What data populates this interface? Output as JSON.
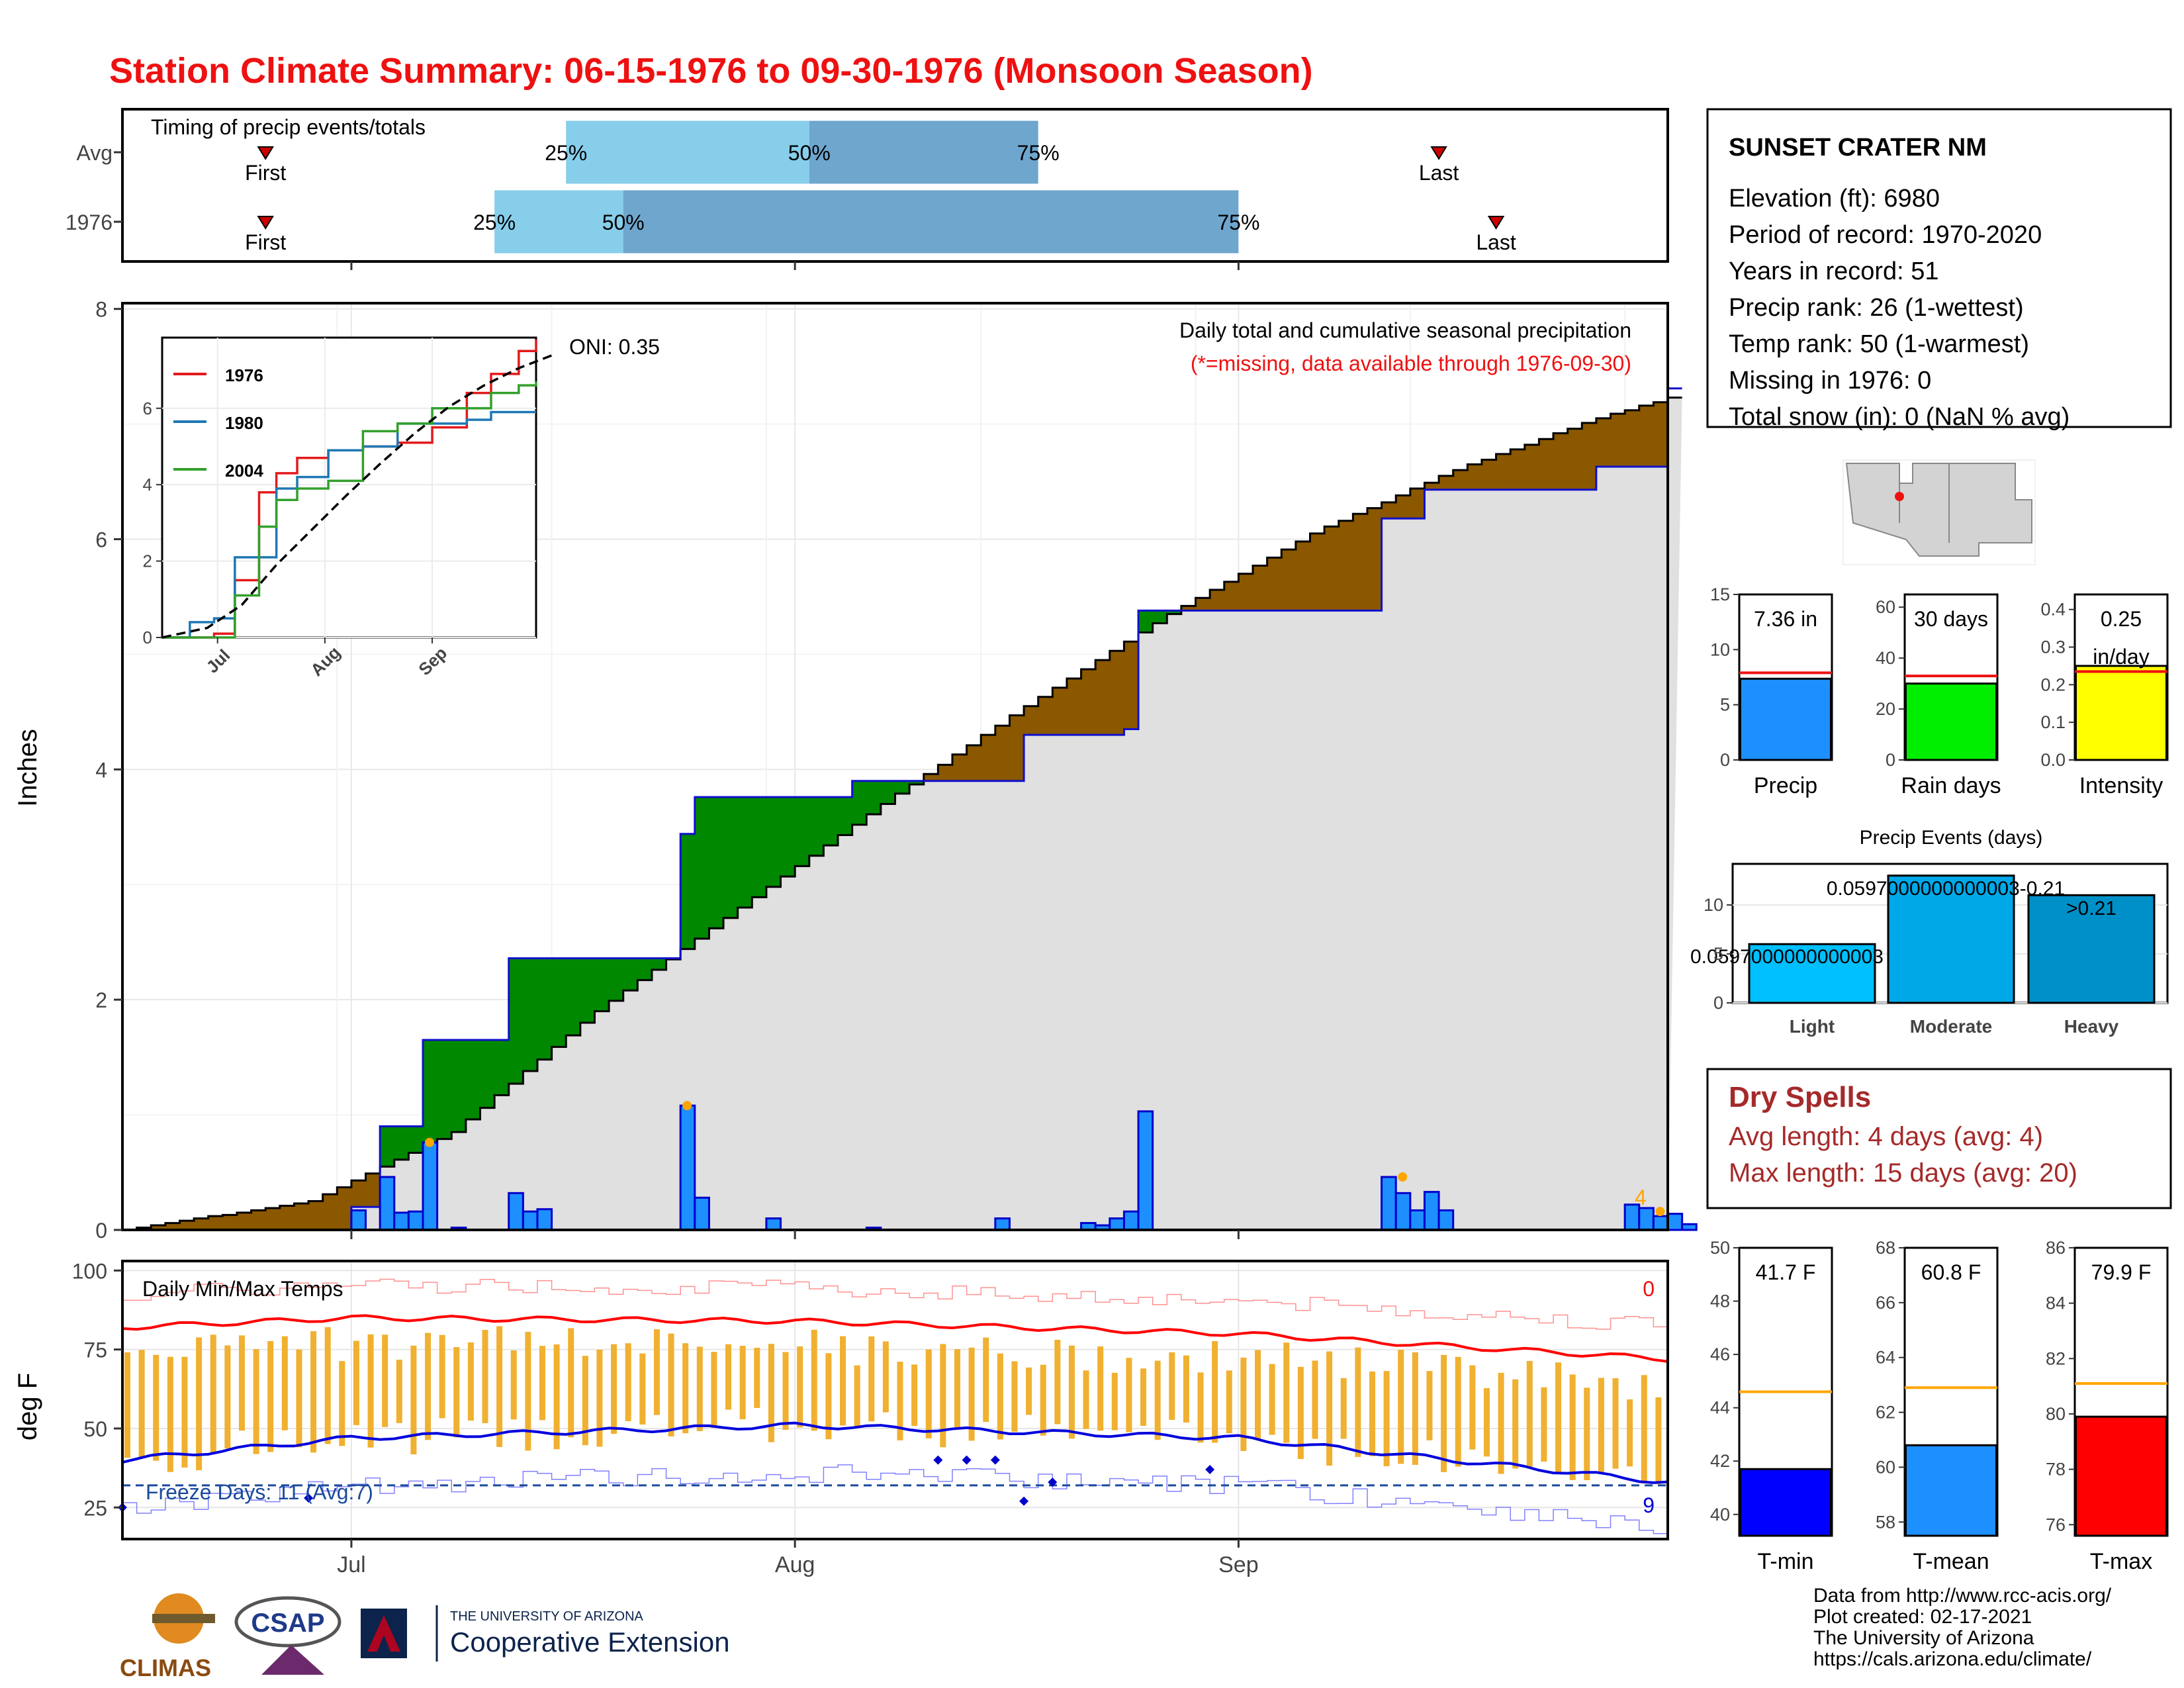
{
  "title": "Station Climate Summary: 06-15-1976 to 09-30-1976 (Monsoon Season)",
  "colors": {
    "title_red": "#ee1111",
    "precip_blue": "#1e8fff",
    "above_green": "#008800",
    "below_brown": "#8b5800",
    "cum_fill": "#e0e0e0",
    "avg_marker": "#ffa500",
    "light_blue_bar": "#87ceeb",
    "mid_blue_bar": "#6ea6cd",
    "temp_max": "#ff0000",
    "temp_min": "#0000dd",
    "temp_bar": "#f0b030"
  },
  "timing_panel": {
    "title": "Timing of precip events/totals",
    "rows": [
      {
        "label": "Avg",
        "first_doy": 177,
        "p25_doy": 198,
        "p50_doy": 215,
        "p75_doy": 231,
        "last_doy": 259
      },
      {
        "label": "1976",
        "first_doy": 177,
        "p25_doy": 193,
        "p50_doy": 202,
        "p75_doy": 245,
        "last_doy": 263
      }
    ],
    "labels": {
      "first": "First",
      "last": "Last",
      "p25": "25%",
      "p50": "50%",
      "p75": "75%"
    }
  },
  "precip_panel": {
    "ylabel": "Inches",
    "note": "Daily total and cumulative seasonal precipitation",
    "missing_note": "(*=missing, data available through 1976-09-30)",
    "oni": "ONI: 0.35",
    "count_label": "4",
    "yticks": [
      "0",
      "2",
      "4",
      "6",
      "8"
    ],
    "xticks": [
      "Jul",
      "Aug",
      "Sep"
    ]
  },
  "inset": {
    "legend": [
      {
        "name": "1976",
        "color": "#e31a1c"
      },
      {
        "name": "1980",
        "color": "#1f78b4"
      },
      {
        "name": "2004",
        "color": "#33a02c"
      }
    ],
    "yticks": [
      "0",
      "2",
      "4",
      "6"
    ],
    "xticks": [
      "Jul",
      "Aug",
      "Sep"
    ]
  },
  "temp_panel": {
    "ylabel": "deg F",
    "title": "Daily Min/Max Temps",
    "max_count": "0",
    "min_count": "9",
    "freeze": "Freeze Days: 11 (Avg:7)",
    "yticks": [
      "25",
      "50",
      "75",
      "100"
    ]
  },
  "station": {
    "name": "SUNSET CRATER NM",
    "lines": [
      "Elevation (ft): 6980",
      "Period of record: 1970-2020",
      "Years in record: 51",
      "Precip rank: 26 (1-wettest)",
      "Temp rank: 50 (1-warmest)",
      "Missing in 1976: 0",
      "Total snow (in): 0 (NaN % avg)"
    ]
  },
  "mini_bars": [
    {
      "label": "Precip",
      "value_text": "7.36 in",
      "value": 7.36,
      "avg": 7.9,
      "ymax": 15,
      "yticks": [
        "0",
        "5",
        "10",
        "15"
      ],
      "color": "#1e8fff"
    },
    {
      "label": "Rain days",
      "value_text": "30 days",
      "value": 30,
      "avg": 33,
      "ymax": 65,
      "yticks": [
        "0",
        "20",
        "40",
        "60"
      ],
      "color": "#00ee00"
    },
    {
      "label": "Intensity",
      "value_text": "0.25",
      "value_text2": "in/day",
      "value": 0.25,
      "avg": 0.235,
      "ymax": 0.44,
      "yticks": [
        "0.0",
        "0.1",
        "0.2",
        "0.3",
        "0.4"
      ],
      "color": "#ffff00"
    }
  ],
  "precip_events": {
    "title": "Precip Events (days)",
    "categories": [
      "Light",
      "Moderate",
      "Heavy"
    ],
    "values": [
      6,
      13,
      11
    ],
    "labels": [
      "0.0597000000000003",
      "0.0597000000000003-0.21",
      ">0.21"
    ],
    "yticks": [
      "0",
      "5",
      "10"
    ]
  },
  "dry_spells": {
    "title": "Dry Spells",
    "avg": "Avg length: 4 days (avg: 4)",
    "max": "Max length: 15 days (avg: 20)"
  },
  "temp_bars": [
    {
      "label": "T-min",
      "value_text": "41.7 F",
      "value": 41.7,
      "avg": 44.6,
      "ymin": 39.2,
      "ymax": 50,
      "yticks": [
        "40",
        "42",
        "44",
        "46",
        "48",
        "50"
      ],
      "color": "#0000ff"
    },
    {
      "label": "T-mean",
      "value_text": "60.8 F",
      "value": 60.8,
      "avg": 62.9,
      "ymin": 57.5,
      "ymax": 68,
      "yticks": [
        "58",
        "60",
        "62",
        "64",
        "66",
        "68"
      ],
      "color": "#1e8fff"
    },
    {
      "label": "T-max",
      "value_text": "79.9 F",
      "value": 79.9,
      "avg": 81.1,
      "ymin": 75.6,
      "ymax": 86,
      "yticks": [
        "76",
        "78",
        "80",
        "82",
        "84",
        "86"
      ],
      "color": "#ff0000"
    }
  ],
  "footer": [
    "Data from http://www.rcc-acis.org/",
    "Plot created: 02-17-2021",
    "The University of Arizona",
    "https://cals.arizona.edu/climate/"
  ],
  "logos": {
    "climas": "CLIMAS",
    "csap": "CSAP",
    "ua_small": "THE UNIVERSITY OF ARIZONA",
    "ua_big": "Cooperative Extension"
  },
  "chart_data": [
    {
      "type": "bar",
      "name": "daily precipitation",
      "x_start": "1976-06-15",
      "x": [
        183,
        185,
        186,
        187,
        188,
        190,
        194,
        195,
        196,
        206,
        207,
        212,
        219,
        228,
        234,
        235,
        236,
        237,
        238,
        255,
        256,
        257,
        258,
        259,
        272,
        273,
        274,
        275,
        276
      ],
      "values": [
        0.17,
        0.46,
        0.15,
        0.16,
        0.76,
        0.02,
        0.32,
        0.16,
        0.18,
        1.08,
        0.28,
        0.1,
        0.02,
        0.1,
        0.06,
        0.04,
        0.1,
        0.16,
        1.03,
        0.46,
        0.32,
        0.17,
        0.33,
        0.17,
        0.22,
        0.19,
        0.12,
        0.14,
        0.05
      ],
      "ylim": [
        0,
        8
      ]
    },
    {
      "type": "area",
      "name": "average cumulative precipitation",
      "x": [
        167,
        180,
        190,
        200,
        210,
        220,
        230,
        240,
        250,
        260,
        270,
        280
      ],
      "values": [
        0.0,
        0.25,
        0.85,
        1.9,
        2.8,
        3.7,
        4.55,
        5.35,
        6.05,
        6.6,
        7.05,
        7.4
      ]
    },
    {
      "type": "line",
      "name": "1976 cumulative precipitation",
      "x": [
        167,
        183,
        185,
        188,
        194,
        206,
        207,
        218,
        230,
        237,
        238,
        255,
        258,
        270,
        275,
        281
      ],
      "values": [
        0.0,
        0.2,
        0.9,
        1.65,
        2.36,
        3.44,
        3.76,
        3.9,
        4.3,
        4.35,
        5.38,
        6.18,
        6.43,
        6.63,
        7.31,
        7.36
      ]
    },
    {
      "type": "line",
      "name": "daily temperatures",
      "x_dates": [
        "06-15",
        "07-01",
        "08-01",
        "09-01",
        "10-01"
      ],
      "tmax_avg": [
        82,
        85,
        84,
        80,
        72
      ],
      "tmin_avg": [
        40,
        47,
        51,
        47,
        33
      ],
      "ylim": [
        15,
        103
      ]
    }
  ]
}
